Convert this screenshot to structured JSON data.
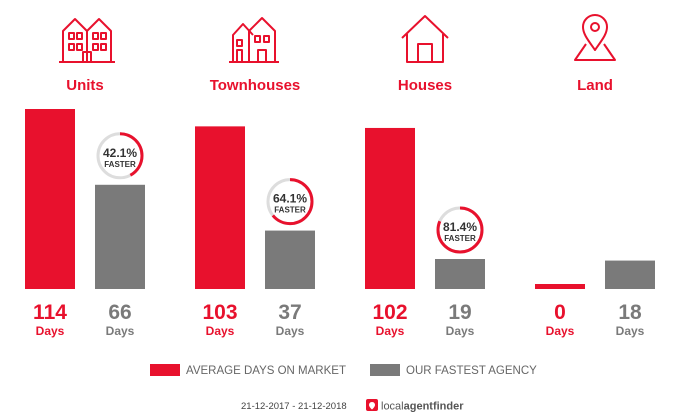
{
  "chart_data": {
    "type": "bar",
    "categories": [
      "Units",
      "Townhouses",
      "Houses",
      "Land"
    ],
    "series": [
      {
        "name": "AVERAGE DAYS ON MARKET",
        "values": [
          114,
          103,
          102,
          0
        ],
        "color": "#e8112d"
      },
      {
        "name": "OUR FASTEST AGENCY",
        "values": [
          66,
          37,
          19,
          18
        ],
        "color": "#7a7a7a"
      }
    ],
    "value_unit": "Days",
    "faster_badges": [
      {
        "category": "Units",
        "percent": "42.1%",
        "word": "FASTER",
        "fraction": 0.421
      },
      {
        "category": "Townhouses",
        "percent": "64.1%",
        "word": "FASTER",
        "fraction": 0.641
      },
      {
        "category": "Houses",
        "percent": "81.4%",
        "word": "FASTER",
        "fraction": 0.814
      }
    ],
    "ylim": [
      0,
      114
    ],
    "legend_position": "bottom",
    "grid": false
  },
  "category_icons": [
    "units-icon",
    "townhouses-icon",
    "houses-icon",
    "land-icon"
  ],
  "colors": {
    "accent": "#e8112d",
    "agency": "#7a7a7a",
    "ring_track": "#dddddd"
  },
  "footer": {
    "date_range": "21-12-2017 - 21-12-2018",
    "brand_prefix": "local",
    "brand_main": "agentfinder"
  }
}
